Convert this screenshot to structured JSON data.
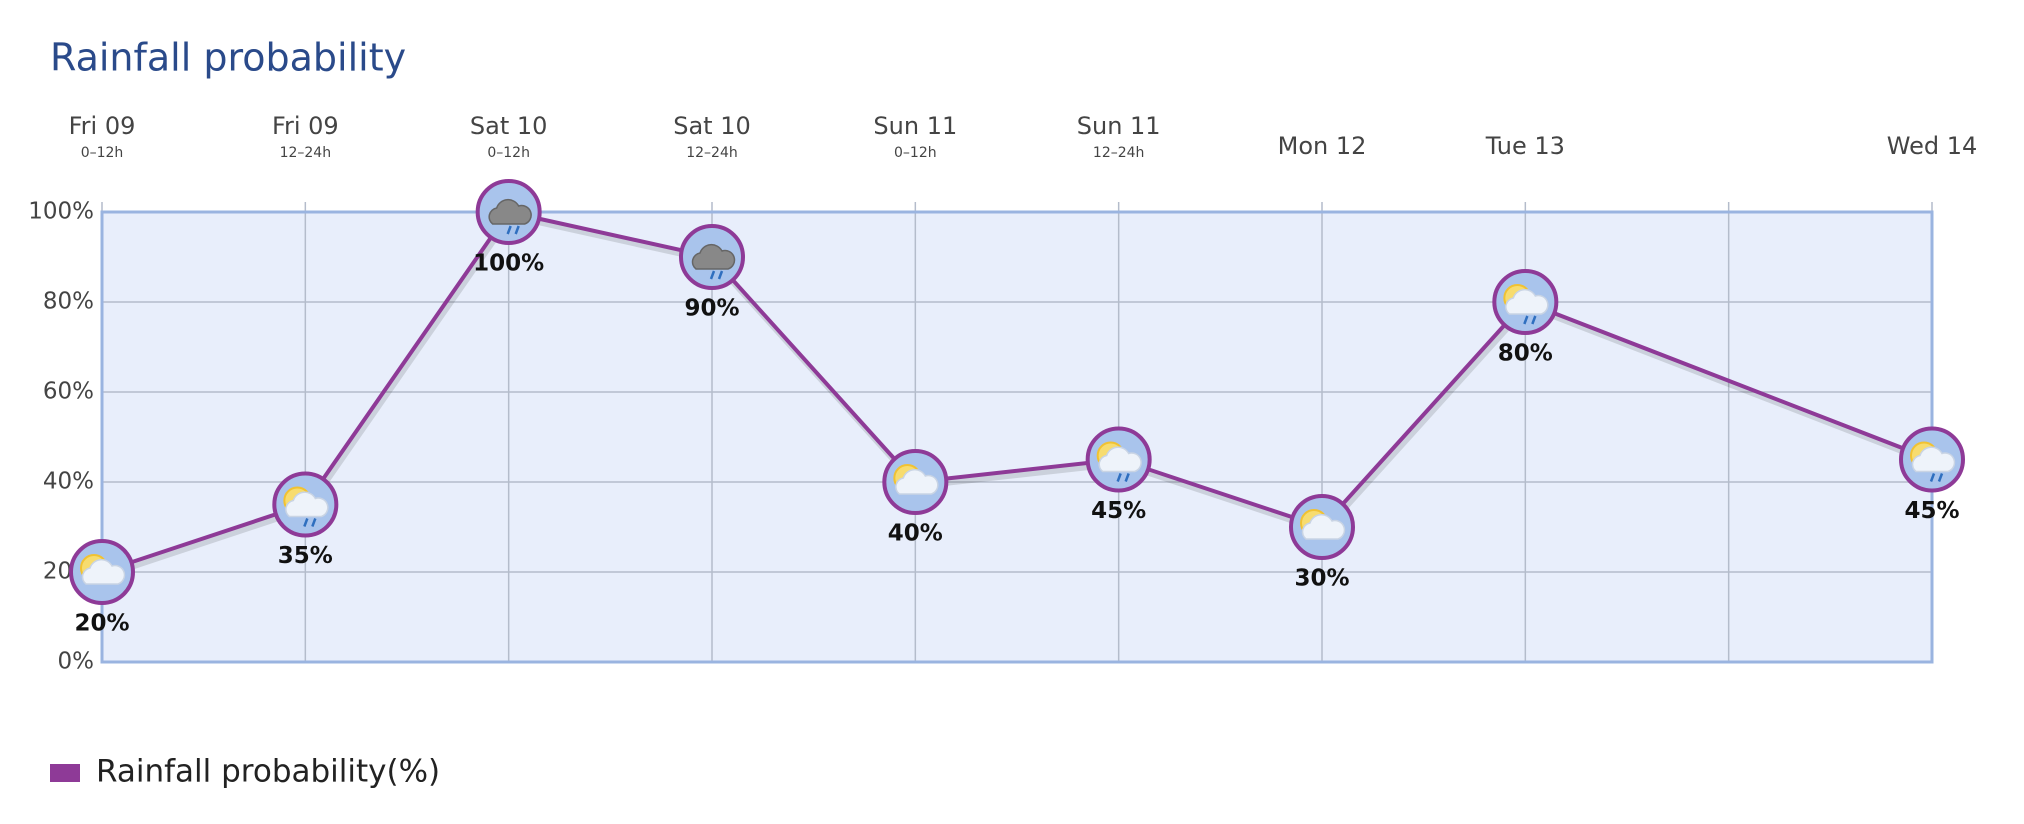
{
  "chart_data": {
    "type": "line",
    "title": "Rainfall probability",
    "categories": [
      "Fri 09",
      "Fri 09",
      "Sat 10",
      "Sat 10",
      "Sun 11",
      "Sun 11",
      "Mon 12",
      "Tue 13",
      null,
      "Wed 14"
    ],
    "category_sublabels": [
      "0–12h",
      "12–24h",
      "0–12h",
      "12–24h",
      "0–12h",
      "12–24h",
      null,
      null,
      null,
      null
    ],
    "series": [
      {
        "name": "Rainfall probability(%)",
        "color": "#8e3a97",
        "values": [
          20,
          35,
          100,
          90,
          40,
          45,
          30,
          80,
          null,
          45
        ],
        "value_labels": [
          "20%",
          "35%",
          "100%",
          "90%",
          "40%",
          "45%",
          "30%",
          "80%",
          null,
          "45%"
        ]
      }
    ],
    "connect_nulls": true,
    "ylim": [
      0,
      100
    ],
    "yticks": [
      {
        "value": 0,
        "label": "0%"
      },
      {
        "value": 20,
        "label": "20%"
      },
      {
        "value": 40,
        "label": "40%"
      },
      {
        "value": 60,
        "label": "60%"
      },
      {
        "value": 80,
        "label": "80%"
      },
      {
        "value": 100,
        "label": "100%"
      }
    ],
    "grid": true,
    "legend": "bottom-left"
  }
}
